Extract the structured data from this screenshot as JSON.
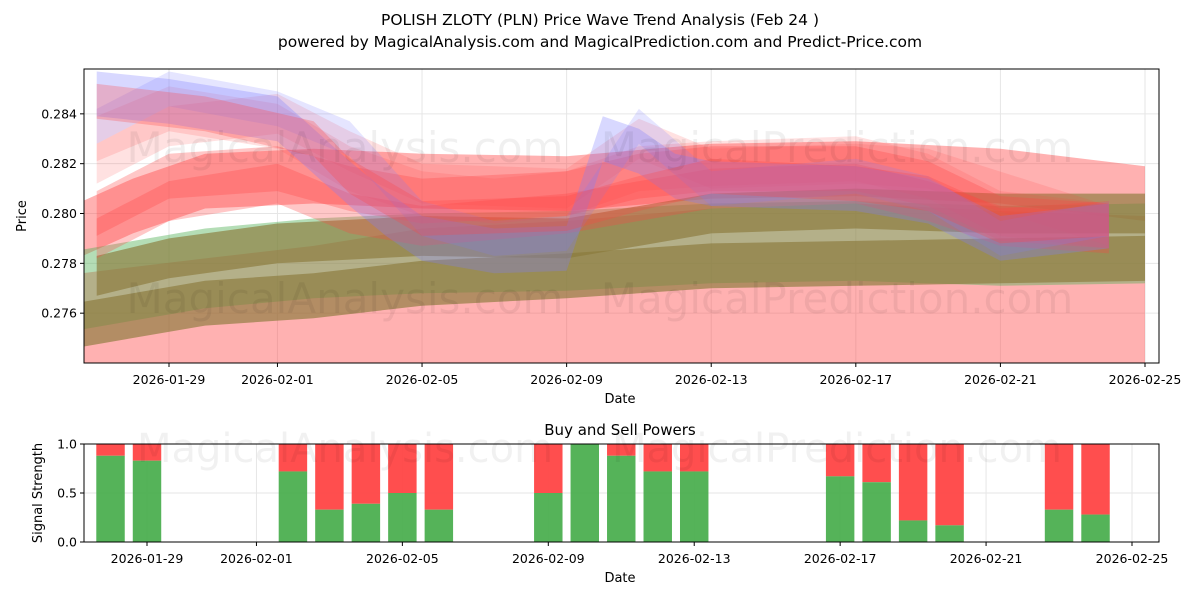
{
  "title_line1": "POLISH ZLOTY (PLN) Price Wave Trend Analysis (Feb 24 )",
  "title_line2": "powered by MagicalAnalysis.com and MagicalPrediction.com and Predict-Price.com",
  "watermarks": {
    "left": "MagicalAnalysis.com",
    "right": "MagicalPrediction.com"
  },
  "colors": {
    "green": "#4caf50",
    "red": "#ff4444",
    "olive": "#8b7a3a",
    "blue": "#7f7fff",
    "grid": "#e6e6e6"
  },
  "chart_data": [
    {
      "name": "price-wave-chart",
      "type": "area",
      "xlabel": "Date",
      "ylabel": "Price",
      "ylim": [
        0.274,
        0.2858
      ],
      "x_range": [
        "2026-01-26",
        "2026-02-25"
      ],
      "x_ticks": [
        "2026-01-29",
        "2026-02-01",
        "2026-02-05",
        "2026-02-09",
        "2026-02-13",
        "2026-02-17",
        "2026-02-21",
        "2026-02-25"
      ],
      "y_ticks": [
        0.276,
        0.278,
        0.28,
        0.282,
        0.284
      ],
      "grid": true,
      "bands": [
        {
          "name": "upper-red-band",
          "color": "red",
          "opacity": 0.42,
          "width_price": 0.0011,
          "x": [
            "2026-01-26",
            "2026-01-28",
            "2026-01-30",
            "2026-02-02",
            "2026-02-05",
            "2026-02-09",
            "2026-02-13",
            "2026-02-17",
            "2026-02-21",
            "2026-02-25"
          ],
          "y": [
            0.279,
            0.2803,
            0.2813,
            0.2815,
            0.2813,
            0.2812,
            0.2817,
            0.2818,
            0.2815,
            0.2808
          ]
        },
        {
          "name": "lower-red-band",
          "color": "red",
          "opacity": 0.42,
          "width_price": 0.0032,
          "x": [
            "2026-01-26",
            "2026-01-30",
            "2026-02-02",
            "2026-02-05",
            "2026-02-09",
            "2026-02-13",
            "2026-02-17",
            "2026-02-21",
            "2026-02-25"
          ],
          "y": [
            0.2743,
            0.275,
            0.2755,
            0.2762,
            0.2765,
            0.277,
            0.2772,
            0.2769,
            0.2767
          ]
        },
        {
          "name": "green-band",
          "color": "green",
          "opacity": 0.42,
          "width_price": 0.0016,
          "x": [
            "2026-01-26",
            "2026-01-30",
            "2026-02-02",
            "2026-02-05",
            "2026-02-09",
            "2026-02-13",
            "2026-02-17",
            "2026-02-21",
            "2026-02-25"
          ],
          "y": [
            0.2768,
            0.2778,
            0.2782,
            0.2784,
            0.2785,
            0.2788,
            0.2789,
            0.2787,
            0.2788
          ]
        },
        {
          "name": "olive-lower-band",
          "color": "olive",
          "opacity": 0.65,
          "width_price": 0.0009,
          "x": [
            "2026-01-26",
            "2026-01-30",
            "2026-02-02",
            "2026-02-05",
            "2026-02-09",
            "2026-02-13",
            "2026-02-17",
            "2026-02-21",
            "2026-02-25"
          ],
          "y": [
            0.2754,
            0.2764,
            0.2767,
            0.2772,
            0.2775,
            0.2779,
            0.278,
            0.2781,
            0.2782
          ]
        },
        {
          "name": "olive-upper-band",
          "color": "olive",
          "opacity": 0.65,
          "width_price": 0.0008,
          "x": [
            "2026-01-27",
            "2026-01-29",
            "2026-02-01",
            "2026-02-05",
            "2026-02-09",
            "2026-02-13",
            "2026-02-17",
            "2026-02-21",
            "2026-02-25"
          ],
          "y": [
            0.2775,
            0.2782,
            0.2788,
            0.2791,
            0.279,
            0.28,
            0.2802,
            0.28,
            0.28
          ]
        },
        {
          "name": "upper-red-wave",
          "color": "red",
          "opacity": 0.3,
          "width_price": 0.0009,
          "x": [
            "2026-01-27",
            "2026-01-29",
            "2026-02-01",
            "2026-02-03",
            "2026-02-05",
            "2026-02-09",
            "2026-02-11",
            "2026-02-13",
            "2026-02-17",
            "2026-02-19",
            "2026-02-21",
            "2026-02-24"
          ],
          "y": [
            0.28,
            0.2815,
            0.2818,
            0.281,
            0.2805,
            0.2808,
            0.2815,
            0.2818,
            0.2818,
            0.2812,
            0.2798,
            0.2795
          ]
        },
        {
          "name": "mid-red-wave",
          "color": "red",
          "opacity": 0.3,
          "width_price": 0.0008,
          "x": [
            "2026-01-27",
            "2026-01-29",
            "2026-02-01",
            "2026-02-03",
            "2026-02-05",
            "2026-02-09",
            "2026-02-11",
            "2026-02-13",
            "2026-02-17",
            "2026-02-19",
            "2026-02-21",
            "2026-02-24"
          ],
          "y": [
            0.279,
            0.2805,
            0.2812,
            0.28,
            0.2795,
            0.28,
            0.2805,
            0.281,
            0.2812,
            0.2805,
            0.2795,
            0.2792
          ]
        },
        {
          "name": "pink-wave-1",
          "color": "red",
          "opacity": 0.16,
          "width_price": 0.0009,
          "x": [
            "2026-01-27",
            "2026-01-29",
            "2026-02-01",
            "2026-02-03",
            "2026-02-05",
            "2026-02-07",
            "2026-02-09",
            "2026-02-11",
            "2026-02-13",
            "2026-02-17",
            "2026-02-19",
            "2026-02-21",
            "2026-02-24"
          ],
          "y": [
            0.283,
            0.2842,
            0.2835,
            0.2818,
            0.2808,
            0.2805,
            0.2808,
            0.2818,
            0.282,
            0.2822,
            0.2815,
            0.28,
            0.2795
          ]
        },
        {
          "name": "pink-wave-2",
          "color": "red",
          "opacity": 0.16,
          "width_price": 0.0008,
          "x": [
            "2026-01-27",
            "2026-01-29",
            "2026-02-01",
            "2026-02-03",
            "2026-02-05",
            "2026-02-09",
            "2026-02-11",
            "2026-02-13",
            "2026-02-17",
            "2026-02-19",
            "2026-02-24"
          ],
          "y": [
            0.282,
            0.2835,
            0.284,
            0.2825,
            0.2812,
            0.281,
            0.283,
            0.2818,
            0.282,
            0.2818,
            0.2795
          ]
        },
        {
          "name": "blue-wave-1",
          "color": "blue",
          "opacity": 0.3,
          "width_price": 0.0009,
          "x": [
            "2026-01-27",
            "2026-01-29",
            "2026-02-01",
            "2026-02-03",
            "2026-02-04",
            "2026-02-05",
            "2026-02-07",
            "2026-02-09",
            "2026-02-10",
            "2026-02-11",
            "2026-02-12",
            "2026-02-13",
            "2026-02-17",
            "2026-02-19",
            "2026-02-21",
            "2026-02-24"
          ],
          "y": [
            0.2848,
            0.2845,
            0.2838,
            0.2812,
            0.28,
            0.279,
            0.2785,
            0.2786,
            0.283,
            0.2825,
            0.2815,
            0.2812,
            0.281,
            0.2805,
            0.279,
            0.2795
          ]
        },
        {
          "name": "blue-wave-2",
          "color": "blue",
          "opacity": 0.2,
          "width_price": 0.0007,
          "x": [
            "2026-01-27",
            "2026-01-29",
            "2026-02-01",
            "2026-02-03",
            "2026-02-05",
            "2026-02-07",
            "2026-02-09",
            "2026-02-11",
            "2026-02-13",
            "2026-02-17",
            "2026-02-19",
            "2026-02-21",
            "2026-02-24"
          ],
          "y": [
            0.2835,
            0.285,
            0.2842,
            0.283,
            0.2798,
            0.279,
            0.2792,
            0.2835,
            0.281,
            0.2815,
            0.2808,
            0.279,
            0.2798
          ]
        },
        {
          "name": "magenta-wave",
          "color": "red",
          "opacity": 0.28,
          "width_price": 0.0007,
          "x": [
            "2026-01-27",
            "2026-01-30",
            "2026-02-02",
            "2026-02-03",
            "2026-02-05",
            "2026-02-09",
            "2026-02-11",
            "2026-02-13",
            "2026-02-17",
            "2026-02-19",
            "2026-02-21",
            "2026-02-24"
          ],
          "y": [
            0.2845,
            0.284,
            0.283,
            0.2815,
            0.2798,
            0.28,
            0.2808,
            0.2815,
            0.2812,
            0.2808,
            0.2795,
            0.2798
          ]
        }
      ]
    },
    {
      "name": "buy-sell-powers",
      "type": "bar",
      "title": "Buy and Sell Powers",
      "xlabel": "Date",
      "ylabel": "Signal Strength",
      "ylim": [
        0,
        1.0
      ],
      "y_ticks": [
        0.0,
        0.5,
        1.0
      ],
      "x_ticks": [
        "2026-01-29",
        "2026-02-01",
        "2026-02-05",
        "2026-02-09",
        "2026-02-13",
        "2026-02-17",
        "2026-02-21",
        "2026-02-25"
      ],
      "x_range": [
        "2026-01-26",
        "2026-02-25"
      ],
      "series": [
        {
          "name": "Buy",
          "color": "green"
        },
        {
          "name": "Sell",
          "color": "red"
        }
      ],
      "dates": [
        "2026-01-28",
        "2026-01-29",
        "2026-02-02",
        "2026-02-03",
        "2026-02-04",
        "2026-02-05",
        "2026-02-06",
        "2026-02-09",
        "2026-02-10",
        "2026-02-11",
        "2026-02-12",
        "2026-02-13",
        "2026-02-17",
        "2026-02-18",
        "2026-02-19",
        "2026-02-20",
        "2026-02-23",
        "2026-02-24"
      ],
      "buy_values": [
        0.88,
        0.83,
        0.72,
        0.33,
        0.39,
        0.5,
        0.33,
        0.5,
        1.0,
        0.88,
        0.72,
        0.72,
        0.67,
        0.61,
        0.22,
        0.17,
        0.33,
        0.28
      ]
    }
  ]
}
